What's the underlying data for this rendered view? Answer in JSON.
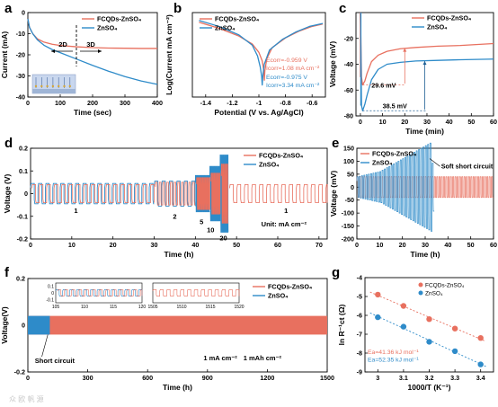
{
  "colors": {
    "red": "#E8705F",
    "blue": "#2E8BC9",
    "darkblue": "#1C5E93",
    "axis": "#000000"
  },
  "panel_labels": [
    "a",
    "b",
    "c",
    "d",
    "e",
    "f",
    "g"
  ],
  "watermark": "众 欧 帆 源",
  "chart_data": [
    {
      "panel": "a",
      "type": "line",
      "xlabel": "Time (sec)",
      "ylabel": "Current (mA)",
      "xlim": [
        0,
        400
      ],
      "ylim": [
        -40,
        0
      ],
      "xticks": [
        0,
        100,
        200,
        300,
        400
      ],
      "yticks": [
        0,
        -10,
        -20,
        -30,
        -40
      ],
      "legend": [
        "FCQDs-ZnSO₄",
        "ZnSO₄"
      ],
      "annotations": [
        "2D",
        "3D"
      ],
      "series": [
        {
          "name": "FCQDs-ZnSO₄",
          "color": "red",
          "x": [
            0,
            5,
            15,
            30,
            50,
            75,
            100,
            150,
            200,
            250,
            300,
            350,
            400
          ],
          "y": [
            -3,
            -7,
            -10,
            -12.5,
            -14,
            -15,
            -15.6,
            -16.2,
            -16.6,
            -16.8,
            -16.9,
            -17,
            -17
          ]
        },
        {
          "name": "ZnSO₄",
          "color": "blue",
          "x": [
            0,
            5,
            15,
            30,
            50,
            75,
            100,
            150,
            200,
            250,
            300,
            350,
            400
          ],
          "y": [
            -3,
            -7,
            -10,
            -13,
            -15.5,
            -17.5,
            -19,
            -22,
            -25,
            -27.8,
            -30.3,
            -32.4,
            -34
          ]
        }
      ]
    },
    {
      "panel": "b",
      "type": "line",
      "xlabel": "Potential (V vs. Ag/AgCl)",
      "ylabel": "Log(Current mA cm⁻²)",
      "xlim": [
        -1.5,
        -0.5
      ],
      "ylim": [
        -6,
        1
      ],
      "xticks": [
        -1.4,
        -1.2,
        -1.0,
        -0.8,
        -0.6
      ],
      "yticks": [],
      "legend": [
        "FCQDs-ZnSO₄",
        "ZnSO₄"
      ],
      "annotations": [
        {
          "text": "Ecorr=-0.959 V",
          "color": "red"
        },
        {
          "text": "Icorr=1.08 mA cm⁻²",
          "color": "red"
        },
        {
          "text": "Ecorr=-0.975 V",
          "color": "blue"
        },
        {
          "text": "Icorr=3.34 mA cm⁻²",
          "color": "blue"
        }
      ],
      "series": [
        {
          "name": "FCQDs-ZnSO₄",
          "color": "red",
          "x": [
            -1.45,
            -1.3,
            -1.15,
            -1.05,
            -1.0,
            -0.975,
            -0.963,
            -0.959,
            -0.955,
            -0.94,
            -0.9,
            -0.8,
            -0.7,
            -0.6,
            -0.52
          ],
          "y": [
            0.2,
            -0.3,
            -0.95,
            -1.6,
            -2.3,
            -3.0,
            -3.8,
            -4.6,
            -3.8,
            -2.8,
            -1.9,
            -1.1,
            -0.55,
            -0.15,
            0.05
          ]
        },
        {
          "name": "ZnSO₄",
          "color": "blue",
          "x": [
            -1.45,
            -1.3,
            -1.15,
            -1.05,
            -1.01,
            -0.99,
            -0.979,
            -0.975,
            -0.971,
            -0.96,
            -0.92,
            -0.82,
            -0.72,
            -0.62,
            -0.52
          ],
          "y": [
            0.35,
            -0.15,
            -0.85,
            -1.7,
            -2.6,
            -3.5,
            -4.3,
            -5.0,
            -4.3,
            -3.3,
            -2.1,
            -1.2,
            -0.6,
            -0.15,
            0.1
          ]
        }
      ]
    },
    {
      "panel": "c",
      "type": "line",
      "xlabel": "Time (min)",
      "ylabel": "Voltage (mV)",
      "xlim": [
        -2,
        60
      ],
      "ylim": [
        -80,
        0
      ],
      "xticks": [
        0,
        10,
        20,
        30,
        40,
        50,
        60
      ],
      "yticks": [
        -20,
        -40,
        -60,
        -80
      ],
      "legend": [
        "FCQDs-ZnSO₄",
        "ZnSO₄"
      ],
      "annotations": [
        "29.6 mV",
        "38.5 mV"
      ],
      "series": [
        {
          "name": "FCQDs-ZnSO₄",
          "color": "red",
          "x": [
            0,
            0.5,
            1,
            2,
            3,
            5,
            8,
            12,
            18,
            25,
            35,
            45,
            60
          ],
          "y": [
            0,
            -50,
            -56,
            -53,
            -47,
            -38,
            -33,
            -30,
            -28,
            -27,
            -26,
            -25.5,
            -24
          ]
        },
        {
          "name": "ZnSO₄",
          "color": "blue",
          "x": [
            0,
            0.5,
            1,
            2,
            3,
            5,
            8,
            12,
            18,
            25,
            35,
            45,
            60
          ],
          "y": [
            0,
            -72,
            -76,
            -71,
            -64,
            -52,
            -44,
            -40,
            -38.5,
            -37.5,
            -37,
            -36.5,
            -36
          ]
        }
      ]
    },
    {
      "panel": "d",
      "type": "line",
      "xlabel": "Time (h)",
      "ylabel": "Voltage (V)",
      "xlim": [
        0,
        72
      ],
      "ylim": [
        -0.2,
        0.2
      ],
      "xticks": [
        0,
        10,
        20,
        30,
        40,
        50,
        60,
        70
      ],
      "yticks": [
        0.2,
        0.1,
        0.0,
        -0.1,
        -0.2
      ],
      "legend": [
        "FCQDs-ZnSO₄",
        "ZnSO₄"
      ],
      "annotations": [
        "1",
        "2",
        "5",
        "10",
        "20",
        "1",
        "Unit: mA cm⁻²"
      ],
      "segments": [
        {
          "t": [
            0,
            30
          ],
          "current_density": 1,
          "fc_amp": 0.04,
          "zn_amp": 0.045
        },
        {
          "t": [
            30,
            40
          ],
          "current_density": 2,
          "fc_amp": 0.05,
          "zn_amp": 0.055
        },
        {
          "t": [
            40,
            43.5
          ],
          "current_density": 5,
          "fc_amp": 0.07,
          "zn_amp": 0.08
        },
        {
          "t": [
            43.5,
            46
          ],
          "current_density": 10,
          "fc_amp": 0.09,
          "zn_amp": 0.12
        },
        {
          "t": [
            46,
            48
          ],
          "current_density": 20,
          "fc_amp": 0.13,
          "zn_amp": 0.17
        },
        {
          "t": [
            48,
            72
          ],
          "current_density": 1,
          "fc_amp": 0.04,
          "zn_amp": null
        }
      ]
    },
    {
      "panel": "e",
      "type": "line",
      "xlabel": "Time (h)",
      "ylabel": "Voltage (mV)",
      "xlim": [
        0,
        60
      ],
      "ylim": [
        -200,
        150
      ],
      "xticks": [
        0,
        10,
        20,
        30,
        40,
        50,
        60
      ],
      "yticks": [
        150,
        100,
        50,
        0,
        -50,
        -100,
        -150,
        -200
      ],
      "legend": [
        "FCQDs-ZnSO₄",
        "ZnSO₄"
      ],
      "annotations": [
        "Soft short circuit"
      ],
      "series": [
        {
          "name": "FCQDs-ZnSO₄",
          "color": "red",
          "envelope_t": [
            0,
            60
          ],
          "amplitude_mV": 40
        },
        {
          "name": "ZnSO₄",
          "color": "blue",
          "envelope_t": [
            0,
            10,
            20,
            28,
            32,
            34
          ],
          "amplitude_mV": [
            40,
            60,
            110,
            150,
            170,
            15
          ]
        }
      ]
    },
    {
      "panel": "f",
      "type": "line",
      "xlabel": "Time (h)",
      "ylabel": "Voltage(V)",
      "xlim": [
        0,
        1500
      ],
      "ylim": [
        -0.2,
        0.2
      ],
      "xticks": [
        0,
        300,
        600,
        900,
        1200,
        1500
      ],
      "yticks": [
        0.2,
        0.0,
        -0.2
      ],
      "legend": [
        "FCQDs-ZnSO₄",
        "ZnSO₄"
      ],
      "annotations": [
        "Short circuit",
        "1 mA cm⁻²",
        "1 mAh cm⁻²"
      ],
      "series": [
        {
          "name": "FCQDs-ZnSO₄",
          "color": "red",
          "t_range": [
            0,
            1500
          ],
          "amplitude_V": 0.04
        },
        {
          "name": "ZnSO₄",
          "color": "blue",
          "t_range": [
            0,
            110
          ],
          "amplitude_V": 0.04
        }
      ],
      "insets": [
        {
          "xlim": [
            105,
            120
          ],
          "xticks": [
            105,
            110,
            115,
            120
          ],
          "yticks": [
            -0.1,
            0.0,
            0.1
          ]
        },
        {
          "xlim": [
            1505,
            1520
          ],
          "xticks": [
            1505,
            1510,
            1515,
            1520
          ],
          "yticks": []
        }
      ]
    },
    {
      "panel": "g",
      "type": "scatter",
      "xlabel": "1000/T (K⁻¹)",
      "ylabel": "ln R⁻¹ct (Ω)",
      "xlim": [
        2.95,
        3.45
      ],
      "ylim": [
        -9,
        -4
      ],
      "xticks": [
        3.0,
        3.1,
        3.2,
        3.3,
        3.4
      ],
      "yticks": [
        -4,
        -5,
        -6,
        -7,
        -8,
        -9
      ],
      "legend": [
        "FCQDs-ZnSO₄",
        "ZnSO₄"
      ],
      "annotations": [
        {
          "text": "Ea=41.36 kJ mol⁻¹",
          "color": "red"
        },
        {
          "text": "Ea=52.35 kJ mol⁻¹",
          "color": "blue"
        }
      ],
      "series": [
        {
          "name": "FCQDs-ZnSO₄",
          "color": "red",
          "x": [
            3.0,
            3.1,
            3.2,
            3.3,
            3.4
          ],
          "y": [
            -4.9,
            -5.5,
            -6.2,
            -6.7,
            -7.2
          ]
        },
        {
          "name": "ZnSO₄",
          "color": "blue",
          "x": [
            3.0,
            3.1,
            3.2,
            3.3,
            3.4
          ],
          "y": [
            -6.1,
            -6.6,
            -7.4,
            -7.9,
            -8.6
          ]
        }
      ]
    }
  ]
}
